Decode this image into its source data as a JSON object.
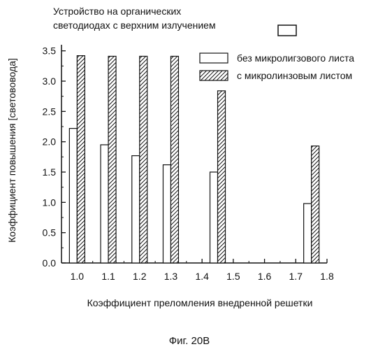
{
  "chart_data": {
    "type": "bar",
    "title_lines": [
      "Устройство на органических",
      "светодиодах с верхним излучением"
    ],
    "xlabel": "Коэффициент преломления внедренной решетки",
    "ylabel": "Коэффициент повышения [светововода]",
    "xlim": [
      0.95,
      1.8
    ],
    "ylim": [
      0.0,
      3.6
    ],
    "x_ticks": [
      "1.0",
      "1.1",
      "1.2",
      "1.3",
      "1.4",
      "1.5",
      "1.6",
      "1.7",
      "1.8"
    ],
    "y_ticks": [
      "0.0",
      "0.5",
      "1.0",
      "1.5",
      "2.0",
      "2.5",
      "3.0",
      "3.5"
    ],
    "x": [
      1.0,
      1.1,
      1.2,
      1.3,
      1.45,
      1.75
    ],
    "series": [
      {
        "name": "без микролигзового листа",
        "values": [
          2.22,
          1.95,
          1.77,
          1.62,
          1.5,
          0.98
        ],
        "pattern": "open"
      },
      {
        "name": "с микролинзовым листом",
        "values": [
          3.42,
          3.41,
          3.41,
          3.41,
          2.84,
          1.93
        ],
        "pattern": "hatched"
      }
    ],
    "grid": false,
    "legend_position": "top-right"
  },
  "caption": "Фиг. 20B"
}
